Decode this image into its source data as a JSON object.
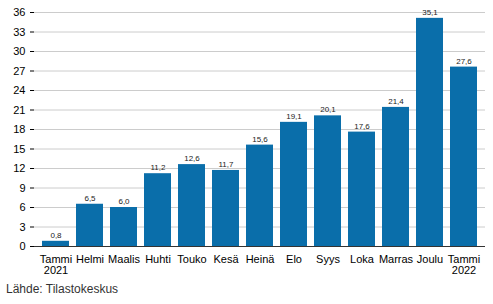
{
  "chart_data": {
    "type": "bar",
    "caption": "Lähde: Tilastokeskus",
    "categories": [
      "Tammi\n2021",
      "Helmi",
      "Maalis",
      "Huhti",
      "Touko",
      "Kesä",
      "Heinä",
      "Elo",
      "Syys",
      "Loka",
      "Marras",
      "Joulu",
      "Tammi\n2022"
    ],
    "values": [
      0.8,
      6.5,
      6.0,
      11.2,
      12.6,
      11.7,
      15.6,
      19.1,
      20.1,
      17.6,
      21.4,
      35.1,
      27.6
    ],
    "value_labels": [
      "0,8",
      "6,5",
      "6,0",
      "11,2",
      "12,6",
      "11,7",
      "15,6",
      "19,1",
      "20,1",
      "17,6",
      "21,4",
      "35,1",
      "27,6"
    ],
    "color": "#0a6eaa",
    "ylim": [
      0,
      36
    ],
    "yticks": [
      0,
      3,
      6,
      9,
      12,
      15,
      18,
      21,
      24,
      27,
      30,
      33,
      36
    ],
    "grid": true,
    "data_labels": true
  }
}
